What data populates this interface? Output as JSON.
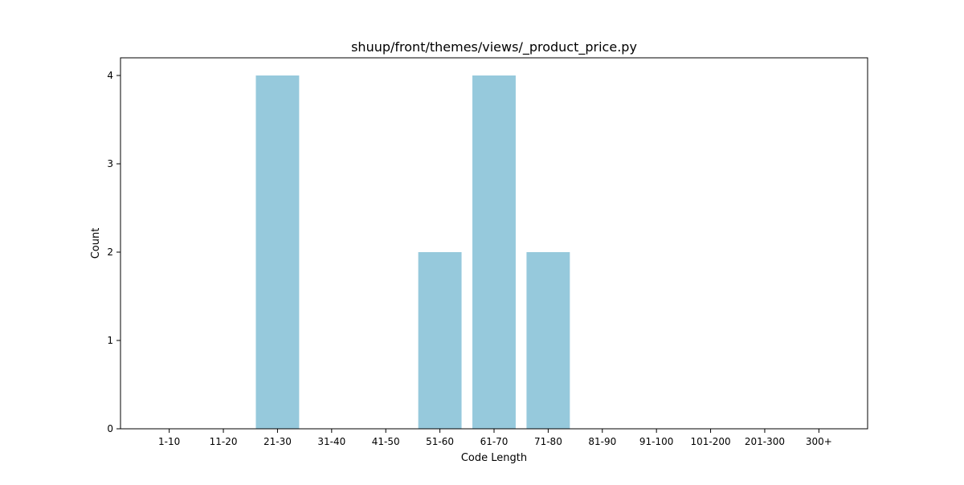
{
  "chart_data": {
    "type": "bar",
    "title": "shuup/front/themes/views/_product_price.py",
    "xlabel": "Code Length",
    "ylabel": "Count",
    "categories": [
      "1-10",
      "11-20",
      "21-30",
      "31-40",
      "41-50",
      "51-60",
      "61-70",
      "71-80",
      "81-90",
      "91-100",
      "101-200",
      "201-300",
      "300+"
    ],
    "values": [
      0,
      0,
      4,
      0,
      0,
      2,
      4,
      2,
      0,
      0,
      0,
      0,
      0
    ],
    "ylim": [
      0,
      4.2
    ],
    "yticks": [
      "0",
      "1",
      "2",
      "3",
      "4"
    ],
    "grid": false,
    "bar_color": "#96c9dc"
  }
}
